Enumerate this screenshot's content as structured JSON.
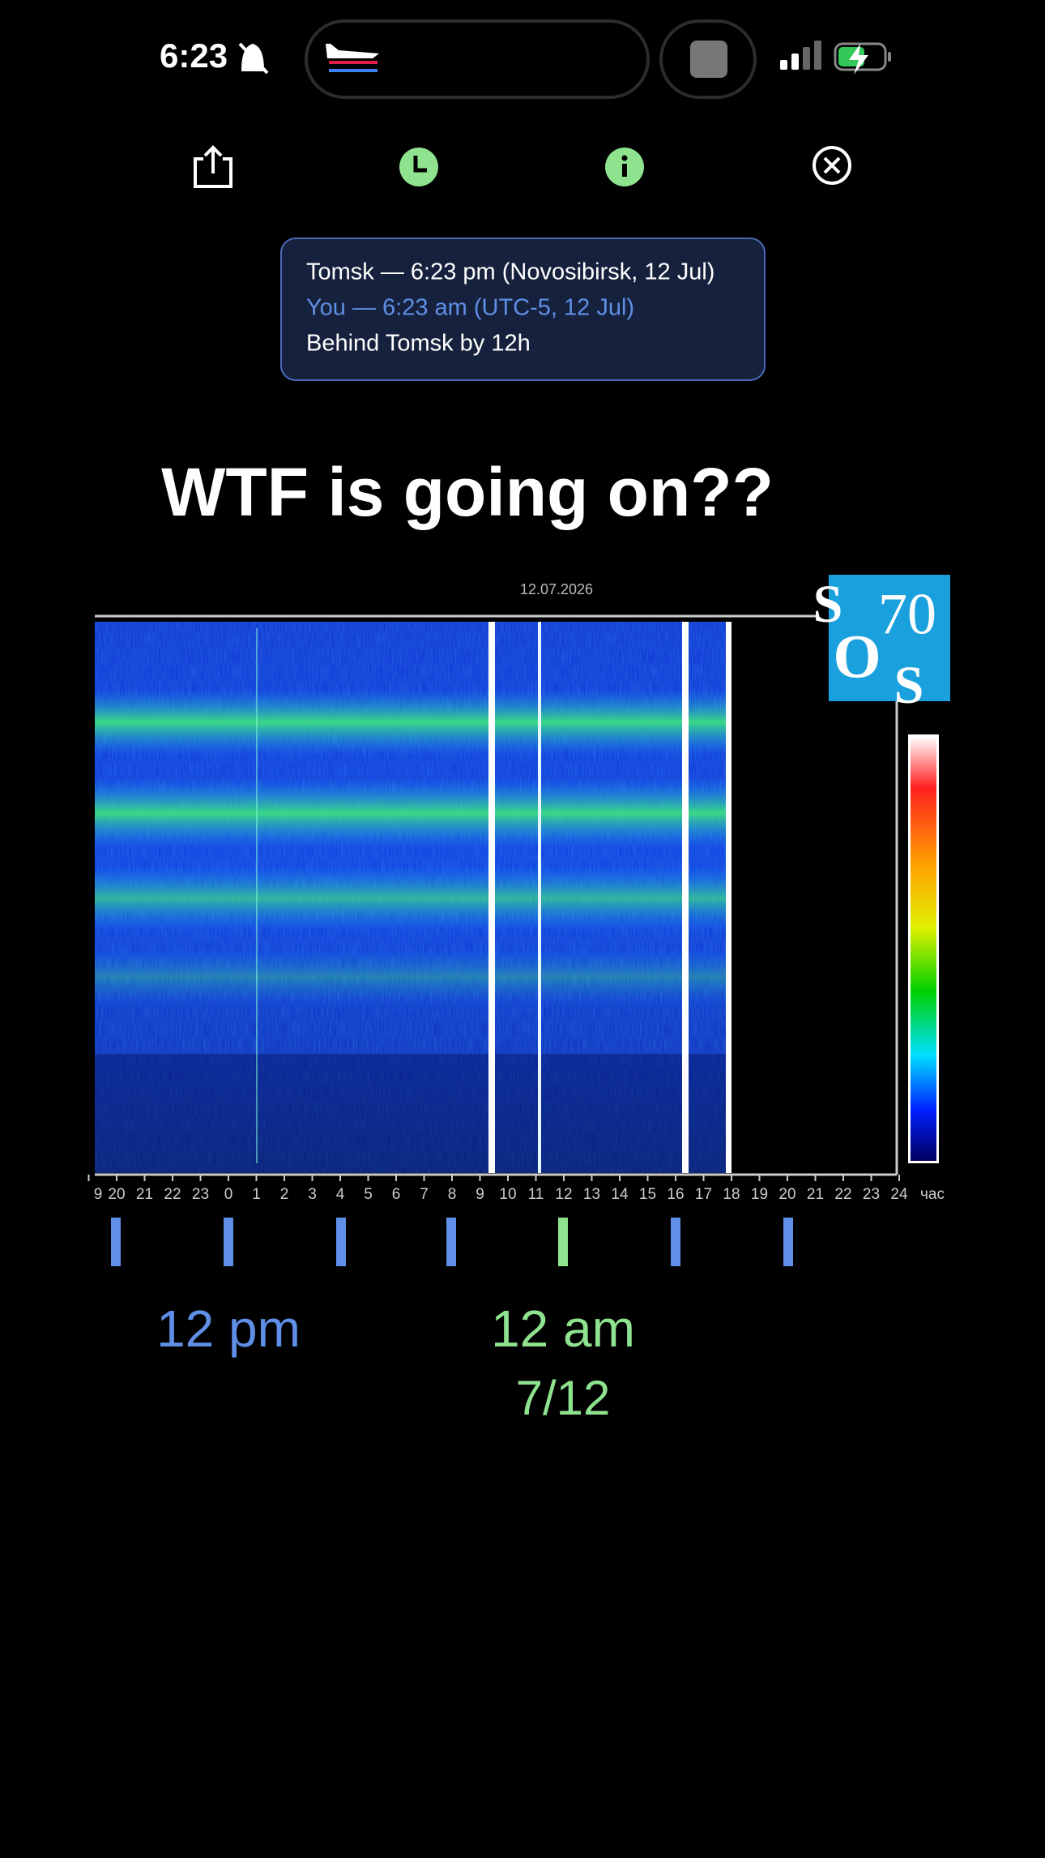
{
  "status_bar": {
    "time": "6:23"
  },
  "info_box": {
    "line1": "Tomsk — 6:23 pm (Novosibirsk, 12 Jul)",
    "line2": "You — 6:23 am (UTC-5, 12 Jul)",
    "line3": "Behind Tomsk by 12h"
  },
  "title": "WTF is going on??",
  "spectrogram": {
    "date": "12.07.2026",
    "hour_labels": [
      "9",
      "20",
      "21",
      "22",
      "23",
      "0",
      "1",
      "2",
      "3",
      "4",
      "5",
      "6",
      "7",
      "8",
      "9",
      "10",
      "11",
      "12",
      "13",
      "14",
      "15",
      "16",
      "17",
      "18",
      "19",
      "20",
      "21",
      "22",
      "23",
      "24"
    ],
    "unit": "час",
    "logo": {
      "s1": "S",
      "num": "70",
      "o": "O",
      "s2": "S"
    }
  },
  "markers": {
    "local_label": "12 pm",
    "tomsk_label": "12 am",
    "tomsk_date": "7/12"
  }
}
